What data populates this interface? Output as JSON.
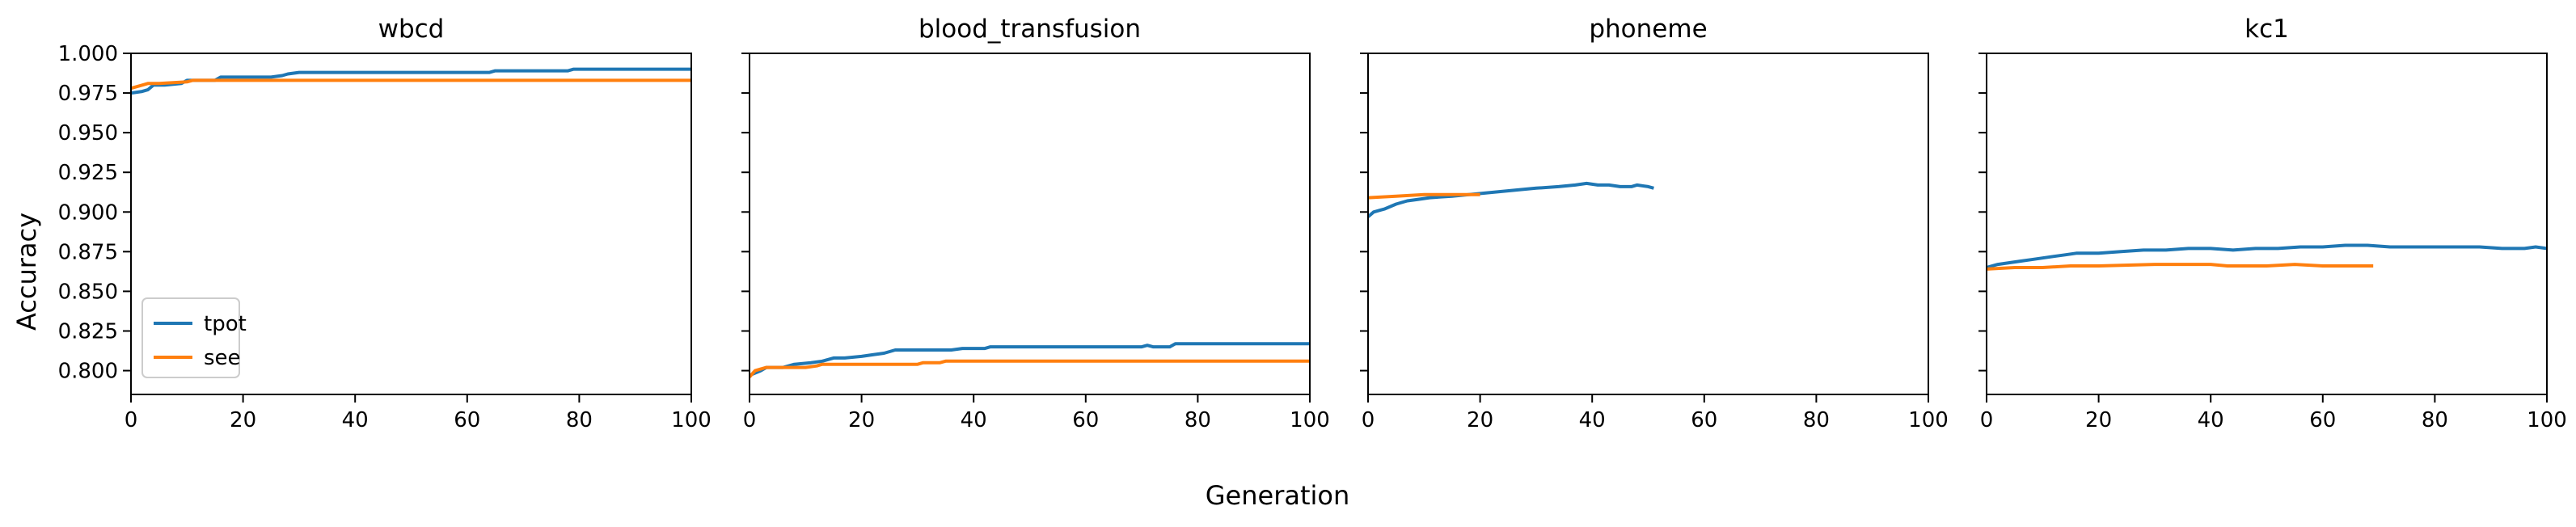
{
  "figure": {
    "ylabel": "Accuracy",
    "xlabel": "Generation"
  },
  "colors": {
    "tpot": "#1f77b4",
    "see": "#ff7f0e"
  },
  "legend": {
    "placement": "lower-left",
    "entries": [
      "tpot",
      "see"
    ]
  },
  "chart_data": [
    {
      "type": "line",
      "title": "wbcd",
      "xlim": [
        0,
        100
      ],
      "ylim": [
        0.785,
        1.0
      ],
      "xticks": [
        0,
        20,
        40,
        60,
        80,
        100
      ],
      "xtick_labels": [
        "0",
        "20",
        "40",
        "60",
        "80",
        "100"
      ],
      "yticks": [
        0.8,
        0.825,
        0.85,
        0.875,
        0.9,
        0.925,
        0.95,
        0.975,
        1.0
      ],
      "ytick_labels": [
        "0.800",
        "0.825",
        "0.850",
        "0.875",
        "0.900",
        "0.925",
        "0.950",
        "0.975",
        "1.000"
      ],
      "series": [
        {
          "name": "tpot",
          "x": [
            0,
            2,
            3,
            4,
            6,
            9,
            10,
            12,
            15,
            16,
            25,
            27,
            28,
            30,
            64,
            65,
            78,
            79,
            100
          ],
          "y": [
            0.975,
            0.976,
            0.977,
            0.98,
            0.98,
            0.981,
            0.983,
            0.983,
            0.983,
            0.985,
            0.985,
            0.986,
            0.987,
            0.988,
            0.988,
            0.989,
            0.989,
            0.99,
            0.99
          ]
        },
        {
          "name": "see",
          "x": [
            0,
            2,
            3,
            5,
            10,
            11,
            100
          ],
          "y": [
            0.978,
            0.98,
            0.981,
            0.981,
            0.982,
            0.983,
            0.983
          ]
        }
      ]
    },
    {
      "type": "line",
      "title": "blood_transfusion",
      "xlim": [
        0,
        100
      ],
      "ylim": [
        0.785,
        1.0
      ],
      "xticks": [
        0,
        20,
        40,
        60,
        80,
        100
      ],
      "xtick_labels": [
        "0",
        "20",
        "40",
        "60",
        "80",
        "100"
      ],
      "yticks": [
        0.8,
        0.825,
        0.85,
        0.875,
        0.9,
        0.925,
        0.95,
        0.975,
        1.0
      ],
      "series": [
        {
          "name": "tpot",
          "x": [
            0,
            2,
            3,
            6,
            8,
            11,
            13,
            15,
            17,
            20,
            22,
            24,
            25,
            26,
            36,
            38,
            42,
            43,
            44,
            70,
            71,
            72,
            75,
            76,
            100
          ],
          "y": [
            0.797,
            0.8,
            0.802,
            0.802,
            0.804,
            0.805,
            0.806,
            0.808,
            0.808,
            0.809,
            0.81,
            0.811,
            0.812,
            0.813,
            0.813,
            0.814,
            0.814,
            0.815,
            0.815,
            0.815,
            0.816,
            0.815,
            0.815,
            0.817,
            0.817
          ]
        },
        {
          "name": "see",
          "x": [
            0,
            1,
            3,
            10,
            12,
            13,
            30,
            31,
            34,
            35,
            100
          ],
          "y": [
            0.796,
            0.8,
            0.802,
            0.802,
            0.803,
            0.804,
            0.804,
            0.805,
            0.805,
            0.806,
            0.806
          ]
        }
      ]
    },
    {
      "type": "line",
      "title": "phoneme",
      "xlim": [
        0,
        100
      ],
      "ylim": [
        0.785,
        1.0
      ],
      "xticks": [
        0,
        20,
        40,
        60,
        80,
        100
      ],
      "xtick_labels": [
        "0",
        "20",
        "40",
        "60",
        "80",
        "100"
      ],
      "yticks": [
        0.8,
        0.825,
        0.85,
        0.875,
        0.9,
        0.925,
        0.95,
        0.975,
        1.0
      ],
      "series": [
        {
          "name": "tpot",
          "x": [
            0,
            1,
            2,
            3,
            5,
            7,
            9,
            11,
            15,
            18,
            21,
            24,
            27,
            30,
            34,
            37,
            39,
            41,
            43,
            45,
            47,
            48,
            50,
            51
          ],
          "y": [
            0.897,
            0.9,
            0.901,
            0.902,
            0.905,
            0.907,
            0.908,
            0.909,
            0.91,
            0.911,
            0.912,
            0.913,
            0.914,
            0.915,
            0.916,
            0.917,
            0.918,
            0.917,
            0.917,
            0.916,
            0.916,
            0.917,
            0.916,
            0.915
          ]
        },
        {
          "name": "see",
          "x": [
            0,
            5,
            10,
            15,
            20
          ],
          "y": [
            0.909,
            0.91,
            0.911,
            0.911,
            0.911
          ]
        }
      ]
    },
    {
      "type": "line",
      "title": "kc1",
      "xlim": [
        0,
        100
      ],
      "ylim": [
        0.785,
        1.0
      ],
      "xticks": [
        0,
        20,
        40,
        60,
        80,
        100
      ],
      "xtick_labels": [
        "0",
        "20",
        "40",
        "60",
        "80",
        "100"
      ],
      "yticks": [
        0.8,
        0.825,
        0.85,
        0.875,
        0.9,
        0.925,
        0.95,
        0.975,
        1.0
      ],
      "series": [
        {
          "name": "tpot",
          "x": [
            0,
            2,
            4,
            6,
            8,
            10,
            12,
            14,
            16,
            20,
            24,
            28,
            32,
            36,
            40,
            44,
            48,
            52,
            56,
            60,
            64,
            68,
            72,
            76,
            80,
            84,
            88,
            92,
            96,
            98,
            100
          ],
          "y": [
            0.865,
            0.867,
            0.868,
            0.869,
            0.87,
            0.871,
            0.872,
            0.873,
            0.874,
            0.874,
            0.875,
            0.876,
            0.876,
            0.877,
            0.877,
            0.876,
            0.877,
            0.877,
            0.878,
            0.878,
            0.879,
            0.879,
            0.878,
            0.878,
            0.878,
            0.878,
            0.878,
            0.877,
            0.877,
            0.878,
            0.877
          ]
        },
        {
          "name": "see",
          "x": [
            0,
            5,
            10,
            15,
            20,
            30,
            40,
            43,
            50,
            55,
            60,
            69
          ],
          "y": [
            0.864,
            0.865,
            0.865,
            0.866,
            0.866,
            0.867,
            0.867,
            0.866,
            0.866,
            0.867,
            0.866,
            0.866
          ]
        }
      ]
    }
  ]
}
